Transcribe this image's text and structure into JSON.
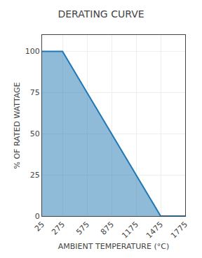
{
  "chart_data": {
    "type": "area",
    "title": "DERATING CURVE",
    "x_label": "AMBIENT TEMPERATURE (°C)",
    "y_label": "% OF RATED WATTAGE",
    "x": [
      25,
      275,
      575,
      875,
      1175,
      1475,
      1775
    ],
    "values": [
      100,
      100,
      75,
      50,
      25,
      0,
      0
    ],
    "xlim": [
      25,
      1775
    ],
    "ylim": [
      0,
      110
    ],
    "xticks": [
      25,
      275,
      575,
      875,
      1175,
      1475,
      1775
    ],
    "yticks": [
      0,
      25,
      50,
      75,
      100
    ],
    "grid": true
  }
}
